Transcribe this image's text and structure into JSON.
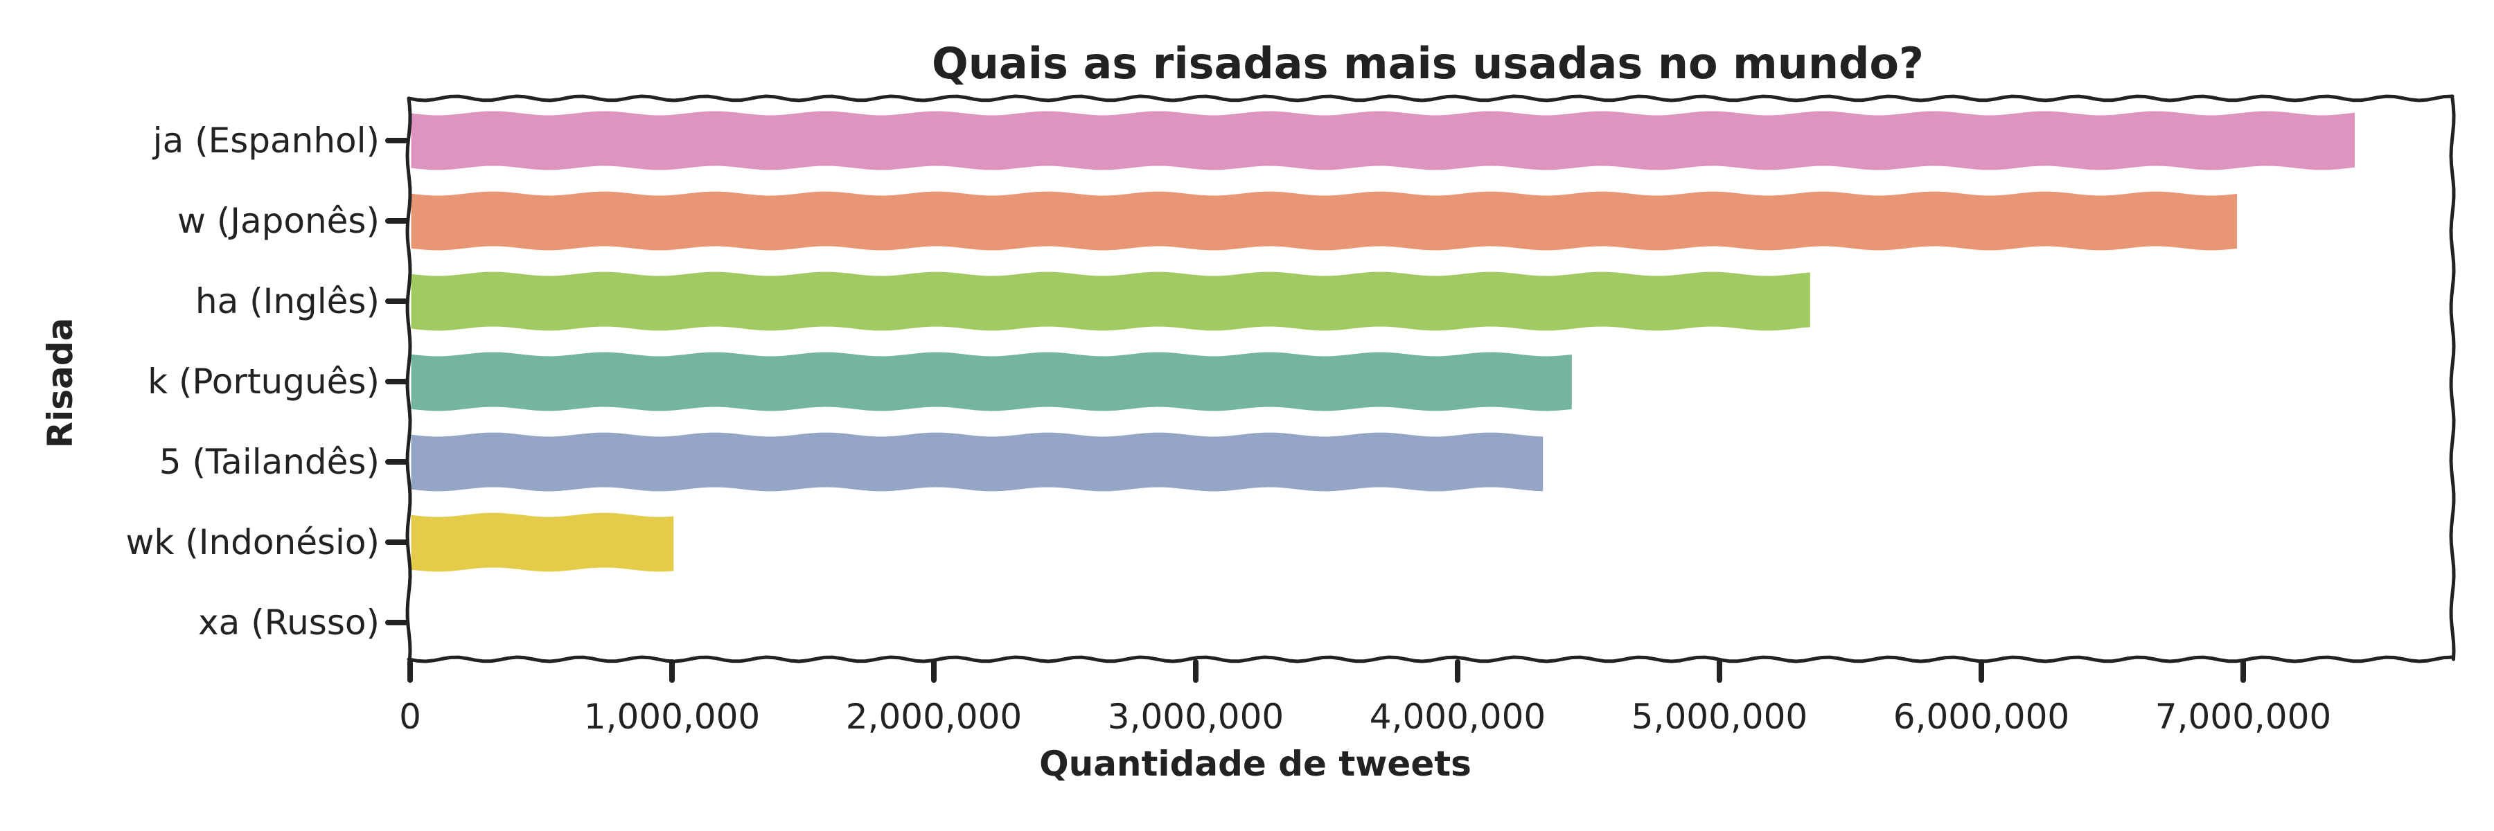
{
  "chart_data": {
    "type": "bar",
    "orientation": "horizontal",
    "title": "Quais as risadas mais usadas no mundo?",
    "xlabel": "Quantidade de tweets",
    "ylabel": "Risada",
    "categories": [
      "ja (Espanhol)",
      "w (Japonês)",
      "ha (Inglês)",
      "k (Português)",
      "5 (Tailandês)",
      "wk (Indonésio)",
      "xa (Russo)"
    ],
    "values": [
      7430000,
      6980000,
      5350000,
      4440000,
      4330000,
      1010000,
      0
    ],
    "colors": [
      "#dd94bf",
      "#e89674",
      "#a2ca63",
      "#73b5a0",
      "#94a5c5",
      "#e4cb4a",
      "#b3b3b3"
    ],
    "xlim": [
      0,
      7800000
    ],
    "xticks": [
      0,
      1000000,
      2000000,
      3000000,
      4000000,
      5000000,
      6000000,
      7000000
    ],
    "xtick_labels": [
      "0",
      "1,000,000",
      "2,000,000",
      "3,000,000",
      "4,000,000",
      "5,000,000",
      "6,000,000",
      "7,000,000"
    ],
    "grid": false,
    "style": "xkcd"
  }
}
